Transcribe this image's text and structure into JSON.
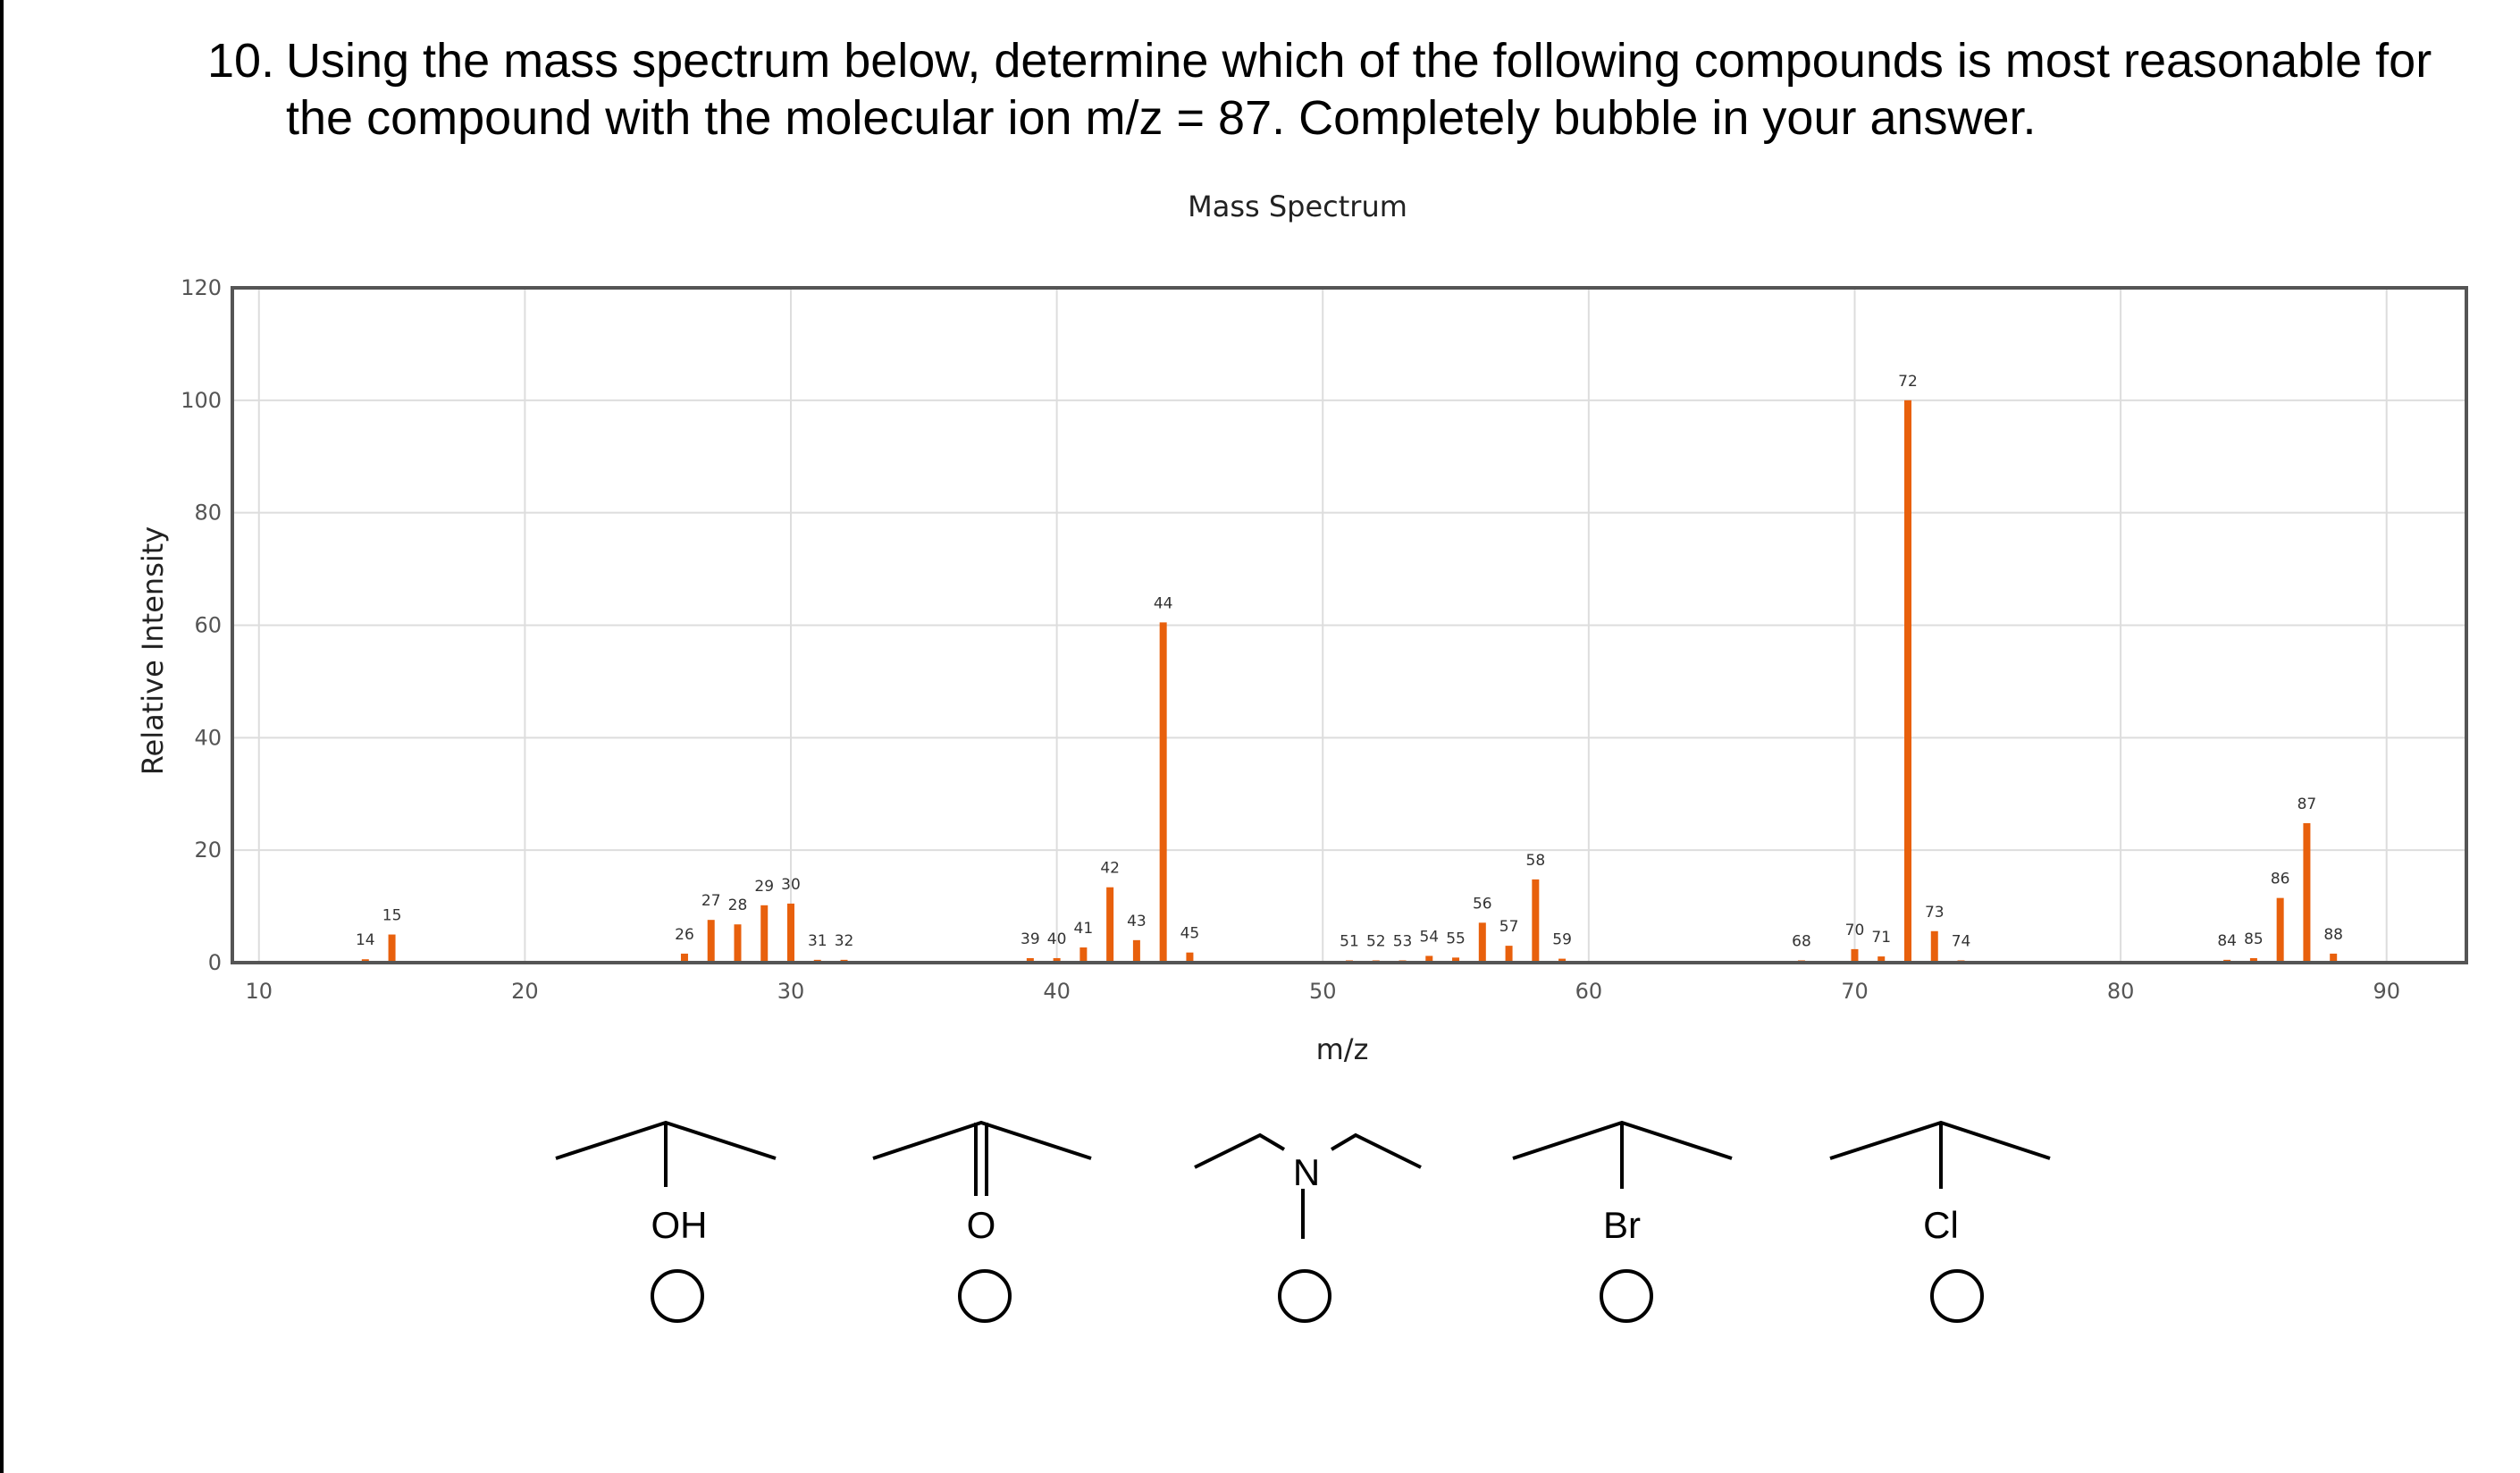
{
  "question": {
    "number": "10.",
    "line1": "Using the mass spectrum below, determine which of the following compounds is most reasonable for",
    "line2": "the compound with the molecular ion m/z = 87. Completely bubble in your answer."
  },
  "chart_data": {
    "type": "bar",
    "title": "Mass Spectrum",
    "xlabel": "m/z",
    "ylabel": "Relative Intensity",
    "xlim": [
      9,
      93
    ],
    "ylim": [
      0,
      120
    ],
    "xticks": [
      10,
      20,
      30,
      40,
      50,
      60,
      70,
      80,
      90
    ],
    "yticks": [
      0,
      20,
      40,
      60,
      80,
      100,
      120
    ],
    "grid": true,
    "bar_color": "#e8600c",
    "peaks": [
      {
        "mz": 14,
        "intensity": 0.6,
        "label": "14"
      },
      {
        "mz": 15,
        "intensity": 5.0,
        "label": "15"
      },
      {
        "mz": 26,
        "intensity": 1.6,
        "label": "26"
      },
      {
        "mz": 27,
        "intensity": 7.6,
        "label": "27"
      },
      {
        "mz": 28,
        "intensity": 6.8,
        "label": "28"
      },
      {
        "mz": 29,
        "intensity": 10.2,
        "label": "29"
      },
      {
        "mz": 30,
        "intensity": 10.5,
        "label": "30"
      },
      {
        "mz": 31,
        "intensity": 0.5,
        "label": "31"
      },
      {
        "mz": 32,
        "intensity": 0.5,
        "label": "32"
      },
      {
        "mz": 39,
        "intensity": 0.8,
        "label": "39"
      },
      {
        "mz": 40,
        "intensity": 0.8,
        "label": "40"
      },
      {
        "mz": 41,
        "intensity": 2.7,
        "label": "41"
      },
      {
        "mz": 42,
        "intensity": 13.4,
        "label": "42"
      },
      {
        "mz": 43,
        "intensity": 4.0,
        "label": "43"
      },
      {
        "mz": 44,
        "intensity": 60.5,
        "label": "44"
      },
      {
        "mz": 45,
        "intensity": 1.8,
        "label": "45"
      },
      {
        "mz": 51,
        "intensity": 0.4,
        "label": "51"
      },
      {
        "mz": 52,
        "intensity": 0.4,
        "label": "52"
      },
      {
        "mz": 53,
        "intensity": 0.4,
        "label": "53"
      },
      {
        "mz": 54,
        "intensity": 1.2,
        "label": "54"
      },
      {
        "mz": 55,
        "intensity": 0.9,
        "label": "55"
      },
      {
        "mz": 56,
        "intensity": 7.1,
        "label": "56"
      },
      {
        "mz": 57,
        "intensity": 3.0,
        "label": "57"
      },
      {
        "mz": 58,
        "intensity": 14.8,
        "label": "58"
      },
      {
        "mz": 59,
        "intensity": 0.7,
        "label": "59"
      },
      {
        "mz": 68,
        "intensity": 0.4,
        "label": "68"
      },
      {
        "mz": 70,
        "intensity": 2.4,
        "label": "70"
      },
      {
        "mz": 71,
        "intensity": 1.1,
        "label": "71"
      },
      {
        "mz": 72,
        "intensity": 100.0,
        "label": "72"
      },
      {
        "mz": 73,
        "intensity": 5.6,
        "label": "73"
      },
      {
        "mz": 74,
        "intensity": 0.4,
        "label": "74"
      },
      {
        "mz": 84,
        "intensity": 0.5,
        "label": "84"
      },
      {
        "mz": 85,
        "intensity": 0.8,
        "label": "85"
      },
      {
        "mz": 86,
        "intensity": 11.5,
        "label": "86"
      },
      {
        "mz": 87,
        "intensity": 24.8,
        "label": "87"
      },
      {
        "mz": 88,
        "intensity": 1.6,
        "label": "88"
      }
    ]
  },
  "choices": [
    {
      "label": "OH"
    },
    {
      "label": "O"
    },
    {
      "label": "N"
    },
    {
      "label": "Br"
    },
    {
      "label": "Cl"
    }
  ]
}
